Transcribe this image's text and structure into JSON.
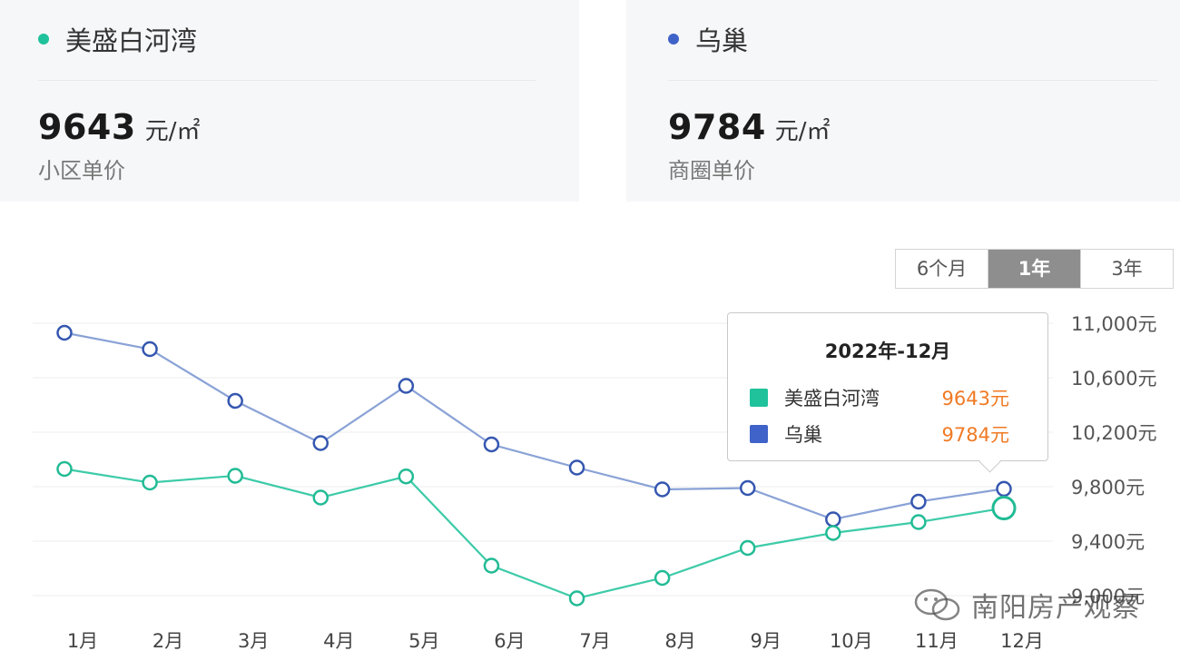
{
  "cards": [
    {
      "name": "美盛白河湾",
      "color": "#1fc29b",
      "price": "9643",
      "unit": "元/㎡",
      "sublabel": "小区单价"
    },
    {
      "name": "乌巢",
      "color": "#3f63c8",
      "price": "9784",
      "unit": "元/㎡",
      "sublabel": "商圈单价"
    }
  ],
  "range_buttons": [
    {
      "label": "6个月",
      "active": false
    },
    {
      "label": "1年",
      "active": true
    },
    {
      "label": "3年",
      "active": false
    }
  ],
  "tooltip": {
    "title": "2022年-12月",
    "rows": [
      {
        "name": "美盛白河湾",
        "value": "9643元",
        "color": "#1fc29b"
      },
      {
        "name": "乌巢",
        "value": "9784元",
        "color": "#3f63c8"
      }
    ]
  },
  "watermark": {
    "text": "南阳房产观察"
  },
  "chart_data": {
    "type": "line",
    "categories": [
      "1月",
      "2月",
      "3月",
      "4月",
      "5月",
      "6月",
      "7月",
      "8月",
      "9月",
      "10月",
      "11月",
      "12月"
    ],
    "series": [
      {
        "name": "美盛白河湾",
        "color": "#3dcba8",
        "values": [
          9930,
          9830,
          9880,
          9720,
          9875,
          9220,
          8980,
          9130,
          9350,
          9460,
          9540,
          9643
        ]
      },
      {
        "name": "乌巢",
        "color": "#8aa2d6",
        "values": [
          10930,
          10810,
          10430,
          10120,
          10540,
          10110,
          9940,
          9780,
          9790,
          9560,
          9690,
          9784
        ]
      }
    ],
    "ylim": [
      9000,
      11000
    ],
    "yticks": [
      9000,
      9400,
      9800,
      10200,
      10600,
      11000
    ],
    "ytick_labels": [
      "9,000元",
      "9,400元",
      "9,800元",
      "10,200元",
      "10,600元",
      "11,000元"
    ],
    "grid": true,
    "highlight_index": 11
  }
}
